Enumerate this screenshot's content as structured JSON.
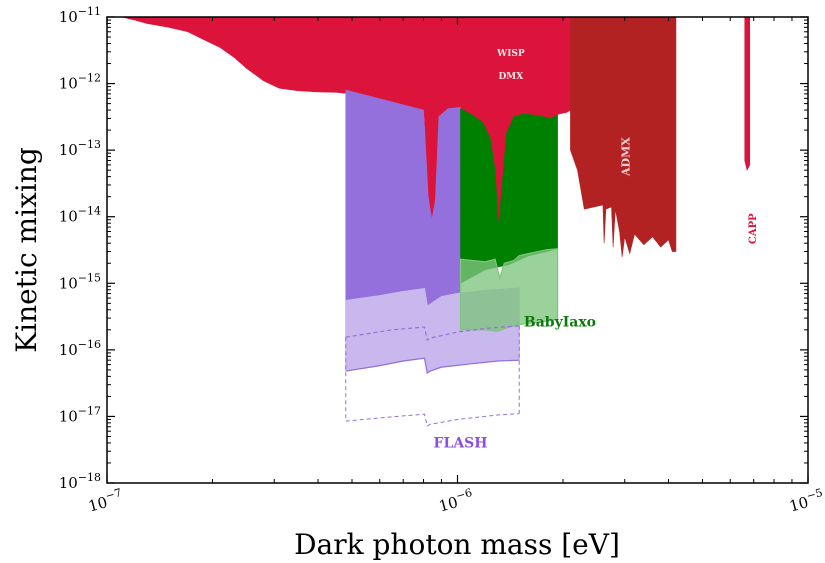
{
  "chart_data": {
    "type": "area",
    "xlabel": "Dark photon mass [eV]",
    "ylabel": "Kinetic mixing",
    "xscale": "log",
    "yscale": "log",
    "xlim": [
      1e-07,
      1e-05
    ],
    "ylim": [
      1e-18,
      1e-11
    ],
    "x_ticks": [
      {
        "value": 1e-07,
        "base": "10",
        "exp": "−7"
      },
      {
        "value": 1e-06,
        "base": "10",
        "exp": "−6"
      },
      {
        "value": 1e-05,
        "base": "10",
        "exp": "−5"
      }
    ],
    "y_ticks": [
      {
        "value": 1e-11,
        "base": "10",
        "exp": "−11"
      },
      {
        "value": 1e-12,
        "base": "10",
        "exp": "−12"
      },
      {
        "value": 1e-13,
        "base": "10",
        "exp": "−13"
      },
      {
        "value": 1e-14,
        "base": "10",
        "exp": "−14"
      },
      {
        "value": 1e-15,
        "base": "10",
        "exp": "−15"
      },
      {
        "value": 1e-16,
        "base": "10",
        "exp": "−16"
      },
      {
        "value": 1e-17,
        "base": "10",
        "exp": "−17"
      },
      {
        "value": 1e-18,
        "base": "10",
        "exp": "−18"
      }
    ],
    "grid": false,
    "legend": "none",
    "colors": {
      "wisp": "#DC143C",
      "admx": "#B22222",
      "capp": "#DC143C",
      "flash_dark": "#9370DB",
      "flash_light": "#C9B8EE",
      "flash_line": "#9370DB",
      "babyiaxo_dark": "#008000",
      "babyiaxo_light": "#7FC47F",
      "label_flash": "#8A4FE0",
      "label_babyiaxo": "#0A7A0A",
      "label_admx": "#F0D0D0",
      "label_wisp": "#F8E8E8"
    },
    "annotations": [
      {
        "text": "WISP",
        "x": 1.42e-06,
        "y": 2.6e-12,
        "color": "wisp-label",
        "rotate": 0,
        "size": 9
      },
      {
        "text": "DMX",
        "x": 1.42e-06,
        "y": 1.18e-12,
        "color": "wisp-label",
        "rotate": 0,
        "size": 9
      },
      {
        "text": "ADMX",
        "x": 3.1e-06,
        "y": 8e-14,
        "color": "admx-label",
        "rotate": -90,
        "size": 11
      },
      {
        "text": "CAPP",
        "x": 7.1e-06,
        "y": 6.6e-15,
        "color": "capp-label",
        "rotate": -90,
        "size": 10
      },
      {
        "text": "BabyIaxo",
        "x": 1.96e-06,
        "y": 2.25e-16,
        "color": "babyiaxo-label",
        "rotate": 0,
        "size": 14
      },
      {
        "text": "FLASH",
        "x": 1.02e-06,
        "y": 3.4e-18,
        "color": "flash-label",
        "rotate": 0,
        "size": 14
      }
    ],
    "series": [
      {
        "type": "fill",
        "color_key": "wisp",
        "opacity": 1,
        "top": 1e-11,
        "lower": [
          [
            1.1e-07,
            1e-11
          ],
          [
            1.2e-07,
            9e-12
          ],
          [
            1.3e-07,
            8e-12
          ],
          [
            1.5e-07,
            7e-12
          ],
          [
            1.7e-07,
            6e-12
          ],
          [
            1.9e-07,
            4.5e-12
          ],
          [
            2.1e-07,
            3.5e-12
          ],
          [
            2.3e-07,
            2.5e-12
          ],
          [
            2.5e-07,
            1.7e-12
          ],
          [
            2.8e-07,
            1.1e-12
          ],
          [
            3.1e-07,
            8.5e-13
          ],
          [
            3.5e-07,
            7.8e-13
          ],
          [
            4e-07,
            7.5e-13
          ],
          [
            4.5e-07,
            7.4e-13
          ],
          [
            5e-07,
            7e-13
          ],
          [
            5.8e-07,
            5.5e-13
          ],
          [
            6.8e-07,
            4.3e-13
          ],
          [
            7.6e-07,
            3.6e-13
          ],
          [
            8.05e-07,
            3e-13
          ],
          [
            8.25e-07,
            2e-14
          ],
          [
            8.45e-07,
            9e-15
          ],
          [
            8.65e-07,
            1.8e-14
          ],
          [
            8.85e-07,
            3.2e-13
          ],
          [
            9.4e-07,
            4.2e-13
          ],
          [
            1e-06,
            4.4e-13
          ],
          [
            1.1e-06,
            3.4e-13
          ],
          [
            1.18e-06,
            2.6e-13
          ],
          [
            1.24e-06,
            1.5e-13
          ],
          [
            1.28e-06,
            5e-14
          ],
          [
            1.31e-06,
            7e-15
          ],
          [
            1.34e-06,
            3e-14
          ],
          [
            1.38e-06,
            1.8e-13
          ],
          [
            1.45e-06,
            3.2e-13
          ],
          [
            1.55e-06,
            3.5e-13
          ],
          [
            1.7e-06,
            3.3e-13
          ],
          [
            1.85e-06,
            3e-13
          ],
          [
            1.95e-06,
            3.5e-13
          ],
          [
            2.05e-06,
            3.7e-13
          ],
          [
            2.1e-06,
            4e-13
          ]
        ],
        "right_x": 2.1e-06
      },
      {
        "type": "fill",
        "color_key": "admx",
        "opacity": 1,
        "top": 1e-11,
        "left_x": 2.1e-06,
        "right_x": 4.2e-06,
        "lower": [
          [
            2.1e-06,
            1e-13
          ],
          [
            2.2e-06,
            5e-14
          ],
          [
            2.3e-06,
            1.3e-14
          ],
          [
            2.6e-06,
            1.5e-14
          ],
          [
            2.62e-06,
            4e-15
          ],
          [
            2.65e-06,
            1.3e-14
          ],
          [
            2.75e-06,
            1.4e-14
          ],
          [
            2.78e-06,
            3.5e-15
          ],
          [
            2.82e-06,
            1.3e-14
          ],
          [
            2.9e-06,
            6e-15
          ],
          [
            2.95e-06,
            2.5e-15
          ],
          [
            3e-06,
            5e-15
          ],
          [
            3.1e-06,
            2.8e-15
          ],
          [
            3.2e-06,
            5.5e-15
          ],
          [
            3.4e-06,
            3.8e-15
          ],
          [
            3.6e-06,
            5e-15
          ],
          [
            3.8e-06,
            3.5e-15
          ],
          [
            4e-06,
            4.5e-15
          ],
          [
            4.1e-06,
            3e-15
          ],
          [
            4.2e-06,
            3e-15
          ]
        ]
      },
      {
        "type": "fill",
        "color_key": "capp",
        "opacity": 1,
        "top": 1e-11,
        "left_x": 6.6e-06,
        "right_x": 6.82e-06,
        "lower": [
          [
            6.6e-06,
            7e-14
          ],
          [
            6.7e-06,
            5e-14
          ],
          [
            6.82e-06,
            6e-14
          ]
        ]
      },
      {
        "type": "fill",
        "color_key": "flash_dark",
        "opacity": 1,
        "upper": [
          [
            4.8e-07,
            8e-13
          ],
          [
            8e-07,
            4e-13
          ],
          [
            8.25e-07,
            2e-14
          ],
          [
            8.45e-07,
            9e-15
          ],
          [
            8.65e-07,
            1.8e-14
          ],
          [
            8.85e-07,
            3.2e-13
          ],
          [
            9.4e-07,
            4.2e-13
          ],
          [
            1.02e-06,
            4.4e-13
          ]
        ],
        "lower": [
          [
            4.8e-07,
            5.5e-16
          ],
          [
            6e-07,
            6.5e-16
          ],
          [
            7e-07,
            7.5e-16
          ],
          [
            8.05e-07,
            8.3e-16
          ],
          [
            8.2e-07,
            4.5e-16
          ],
          [
            8.35e-07,
            4.8e-16
          ],
          [
            9e-07,
            6.3e-16
          ],
          [
            1.02e-06,
            7e-16
          ]
        ]
      },
      {
        "type": "fill",
        "color_key": "flash_light",
        "opacity": 1,
        "upper": [
          [
            4.8e-07,
            5.5e-16
          ],
          [
            6e-07,
            6.5e-16
          ],
          [
            7e-07,
            7.5e-16
          ],
          [
            8.05e-07,
            8.3e-16
          ],
          [
            8.2e-07,
            4.5e-16
          ],
          [
            8.35e-07,
            4.8e-16
          ],
          [
            9e-07,
            6.3e-16
          ],
          [
            1e-06,
            7e-16
          ],
          [
            1.2e-06,
            7.8e-16
          ],
          [
            1.5e-06,
            8.5e-16
          ]
        ],
        "lower": [
          [
            4.8e-07,
            4.8e-17
          ],
          [
            6e-07,
            5.8e-17
          ],
          [
            7e-07,
            6.8e-17
          ],
          [
            8.05e-07,
            7.5e-17
          ],
          [
            8.2e-07,
            4.5e-17
          ],
          [
            8.35e-07,
            4.8e-17
          ],
          [
            9e-07,
            5.5e-17
          ],
          [
            1.1e-06,
            6.2e-17
          ],
          [
            1.3e-06,
            6.8e-17
          ],
          [
            1.5e-06,
            7e-17
          ]
        ]
      },
      {
        "type": "fill",
        "color_key": "babyiaxo_dark",
        "opacity": 1,
        "upper": [
          [
            1.02e-06,
            4.2e-13
          ],
          [
            1.1e-06,
            3.4e-13
          ],
          [
            1.18e-06,
            2.6e-13
          ],
          [
            1.24e-06,
            1.5e-13
          ],
          [
            1.28e-06,
            5e-14
          ],
          [
            1.31e-06,
            7e-15
          ],
          [
            1.34e-06,
            3e-14
          ],
          [
            1.38e-06,
            1.8e-13
          ],
          [
            1.45e-06,
            3.2e-13
          ],
          [
            1.55e-06,
            3.5e-13
          ],
          [
            1.7e-06,
            3.3e-13
          ],
          [
            1.85e-06,
            3e-13
          ],
          [
            1.93e-06,
            3.4e-13
          ]
        ],
        "lower": [
          [
            1.02e-06,
            1e-15
          ],
          [
            1.2e-06,
            1.6e-15
          ],
          [
            1.4e-06,
            1.9e-15
          ],
          [
            1.6e-06,
            2.6e-15
          ],
          [
            1.8e-06,
            3e-15
          ],
          [
            1.93e-06,
            3.3e-15
          ]
        ]
      },
      {
        "type": "fill",
        "color_key": "babyiaxo_light",
        "opacity": 0.78,
        "upper": [
          [
            1.02e-06,
            2.3e-15
          ],
          [
            1.2e-06,
            2.1e-15
          ],
          [
            1.28e-06,
            2.3e-15
          ],
          [
            1.32e-06,
            1.2e-15
          ],
          [
            1.36e-06,
            2e-15
          ],
          [
            1.45e-06,
            2.2e-15
          ],
          [
            1.5e-06,
            2.6e-15
          ],
          [
            1.6e-06,
            2.8e-15
          ],
          [
            1.8e-06,
            3.2e-15
          ],
          [
            1.93e-06,
            3.3e-15
          ]
        ],
        "lower": [
          [
            1.02e-06,
            2e-16
          ],
          [
            1.1e-06,
            2e-16
          ],
          [
            1.2e-06,
            2e-16
          ],
          [
            1.3e-06,
            1.9e-16
          ],
          [
            1.4e-06,
            2.2e-16
          ],
          [
            1.5e-06,
            2.4e-16
          ],
          [
            1.6e-06,
            2.5e-16
          ],
          [
            1.8e-06,
            2.7e-16
          ],
          [
            1.93e-06,
            2.9e-16
          ]
        ]
      },
      {
        "type": "line",
        "color_key": "flash_line",
        "width": 1.2,
        "dash": "4,3",
        "points": [
          [
            4.8e-07,
            1.55e-16
          ],
          [
            6.5e-07,
            2e-16
          ],
          [
            8.05e-07,
            2.2e-16
          ],
          [
            8.2e-07,
            1.4e-16
          ],
          [
            8.35e-07,
            1.5e-16
          ],
          [
            1e-06,
            1.85e-16
          ],
          [
            1.2e-06,
            2.1e-16
          ],
          [
            1.5e-06,
            2.3e-16
          ]
        ]
      },
      {
        "type": "line",
        "color_key": "flash_line",
        "width": 1.2,
        "dash": "",
        "points": [
          [
            4.8e-07,
            4.8e-17
          ],
          [
            6e-07,
            5.8e-17
          ],
          [
            7e-07,
            6.8e-17
          ],
          [
            8.05e-07,
            7.5e-17
          ],
          [
            8.2e-07,
            4.5e-17
          ],
          [
            8.35e-07,
            4.8e-17
          ],
          [
            9e-07,
            5.5e-17
          ],
          [
            1.1e-06,
            6.2e-17
          ],
          [
            1.3e-06,
            6.8e-17
          ],
          [
            1.5e-06,
            7e-17
          ]
        ]
      },
      {
        "type": "line",
        "color_key": "flash_line",
        "width": 1.0,
        "dash": "4,3",
        "points": [
          [
            4.8e-07,
            8.5e-18
          ],
          [
            6e-07,
            9.5e-18
          ],
          [
            7e-07,
            1.02e-17
          ],
          [
            8.05e-07,
            1.08e-17
          ],
          [
            8.2e-07,
            7.2e-18
          ],
          [
            8.35e-07,
            7.6e-18
          ],
          [
            1e-06,
            9e-18
          ],
          [
            1.3e-06,
            1.05e-17
          ],
          [
            1.5e-06,
            1.1e-17
          ]
        ]
      },
      {
        "type": "line",
        "color_key": "flash_line",
        "width": 1.0,
        "dash": "4,3",
        "points": [
          [
            4.8e-07,
            1.55e-16
          ],
          [
            4.8e-07,
            8.5e-18
          ]
        ]
      },
      {
        "type": "line",
        "color_key": "flash_line",
        "width": 1.0,
        "dash": "4,3",
        "points": [
          [
            1.5e-06,
            2.3e-16
          ],
          [
            1.5e-06,
            1.1e-17
          ]
        ]
      }
    ]
  }
}
